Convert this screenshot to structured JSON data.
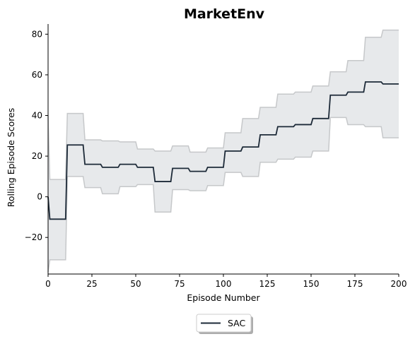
{
  "chart_data": {
    "type": "line",
    "title": "MarketEnv",
    "xlabel": "Episode Number",
    "ylabel": "Rolling Episode Scores",
    "xlim": [
      0,
      200
    ],
    "ylim": [
      -38,
      85
    ],
    "xticks": [
      0,
      25,
      50,
      75,
      100,
      125,
      150,
      175,
      200
    ],
    "yticks": [
      -20,
      0,
      20,
      40,
      60,
      80
    ],
    "grid": false,
    "legend_position": "bottom-center",
    "series": [
      {
        "name": "SAC",
        "color": "#1d2a38",
        "band_color": "#e7e9eb",
        "band_edge_color": "#c6c8ca",
        "x": [
          0,
          1,
          10,
          11,
          20,
          21,
          30,
          31,
          40,
          41,
          50,
          51,
          60,
          61,
          70,
          71,
          80,
          81,
          90,
          91,
          100,
          101,
          110,
          111,
          120,
          121,
          130,
          131,
          140,
          141,
          150,
          151,
          160,
          161,
          170,
          171,
          180,
          181,
          190,
          191,
          200
        ],
        "mean": [
          0,
          -11,
          -11,
          25.5,
          25.5,
          16,
          16,
          14.5,
          14.5,
          16,
          16,
          14.5,
          14.5,
          7.5,
          7.5,
          14,
          14,
          12.5,
          12.5,
          14.5,
          14.5,
          22.5,
          22.5,
          24.5,
          24.5,
          30.5,
          30.5,
          34.5,
          34.5,
          35.5,
          35.5,
          38.5,
          38.5,
          50,
          50,
          51.5,
          51.5,
          56.5,
          56.5,
          55.5,
          55.5
        ],
        "upper": [
          40,
          8.5,
          8.5,
          41,
          41,
          28,
          28,
          27.5,
          27.5,
          27,
          27,
          23.5,
          23.5,
          22.5,
          22.5,
          25,
          25,
          22,
          22,
          24,
          24,
          31.5,
          31.5,
          38.5,
          38.5,
          44,
          44,
          50.5,
          50.5,
          51.5,
          51.5,
          54.5,
          54.5,
          61.5,
          61.5,
          67,
          67,
          78.5,
          78.5,
          82,
          82
        ],
        "lower": [
          -37,
          -31,
          -31,
          10,
          10,
          4.5,
          4.5,
          1.5,
          1.5,
          5,
          5,
          6,
          6,
          -7.5,
          -7.5,
          3.5,
          3.5,
          3,
          3,
          5.5,
          5.5,
          12,
          12,
          10,
          10,
          17,
          17,
          18.5,
          18.5,
          19.5,
          19.5,
          22.5,
          22.5,
          39,
          39,
          35.5,
          35.5,
          34.5,
          34.5,
          29,
          29
        ]
      }
    ]
  }
}
